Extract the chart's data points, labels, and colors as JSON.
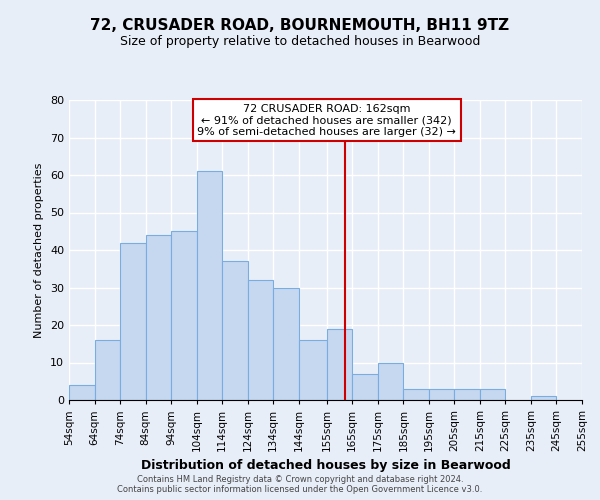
{
  "title": "72, CRUSADER ROAD, BOURNEMOUTH, BH11 9TZ",
  "subtitle": "Size of property relative to detached houses in Bearwood",
  "xlabel": "Distribution of detached houses by size in Bearwood",
  "ylabel": "Number of detached properties",
  "bin_edges": [
    54,
    64,
    74,
    84,
    94,
    104,
    114,
    124,
    134,
    144,
    155,
    165,
    175,
    185,
    195,
    205,
    215,
    225,
    235,
    245,
    255
  ],
  "bin_counts": [
    4,
    16,
    42,
    44,
    45,
    61,
    37,
    32,
    30,
    16,
    19,
    7,
    10,
    3,
    3,
    3,
    3,
    0,
    1,
    0
  ],
  "bar_color": "#c5d8f0",
  "bar_edge_color": "#7aace0",
  "vline_x": 162,
  "vline_color": "#cc0000",
  "annotation_title": "72 CRUSADER ROAD: 162sqm",
  "annotation_line1": "← 91% of detached houses are smaller (342)",
  "annotation_line2": "9% of semi-detached houses are larger (32) →",
  "annotation_box_facecolor": "white",
  "annotation_box_edgecolor": "#cc0000",
  "ylim": [
    0,
    80
  ],
  "yticks": [
    0,
    10,
    20,
    30,
    40,
    50,
    60,
    70,
    80
  ],
  "tick_labels": [
    "54sqm",
    "64sqm",
    "74sqm",
    "84sqm",
    "94sqm",
    "104sqm",
    "114sqm",
    "124sqm",
    "134sqm",
    "144sqm",
    "155sqm",
    "165sqm",
    "175sqm",
    "185sqm",
    "195sqm",
    "205sqm",
    "215sqm",
    "225sqm",
    "235sqm",
    "245sqm",
    "255sqm"
  ],
  "footer1": "Contains HM Land Registry data © Crown copyright and database right 2024.",
  "footer2": "Contains public sector information licensed under the Open Government Licence v3.0.",
  "background_color": "#e8eef8",
  "grid_color": "#ffffff",
  "title_fontsize": 11,
  "subtitle_fontsize": 9,
  "xlabel_fontsize": 9,
  "ylabel_fontsize": 8,
  "annotation_fontsize": 8
}
